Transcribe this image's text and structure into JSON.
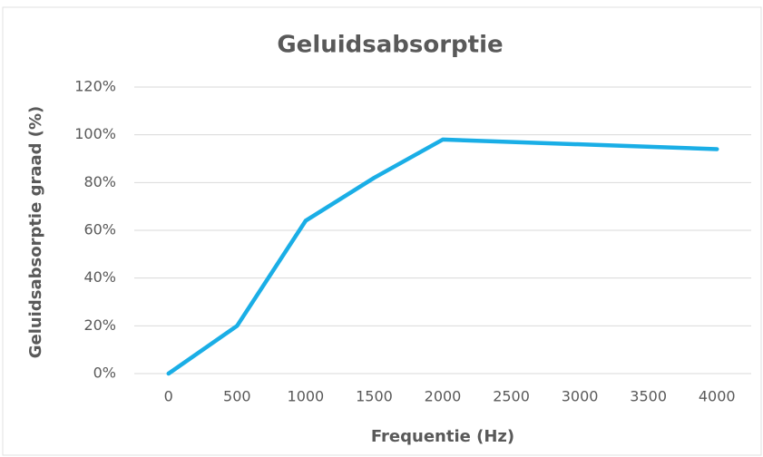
{
  "chart_data": {
    "type": "line",
    "title": "Geluidsabsorptie",
    "xlabel": "Frequentie  (Hz)",
    "ylabel": "Geluidsabsorptie  graad  (%)",
    "x": [
      0,
      500,
      1000,
      1500,
      2000,
      4000
    ],
    "series": [
      {
        "name": "Geluidsabsorptie",
        "color": "#1aaee6",
        "values": [
          0,
          20,
          64,
          82,
          98,
          94
        ]
      }
    ],
    "xlim": [
      -250,
      4250
    ],
    "xticks": [
      0,
      500,
      1000,
      1500,
      2000,
      2500,
      3000,
      3500,
      4000
    ],
    "ylim": [
      0,
      120
    ],
    "yticks": [
      {
        "value": 0,
        "label": "0%"
      },
      {
        "value": 20,
        "label": "20%"
      },
      {
        "value": 40,
        "label": "40%"
      },
      {
        "value": 60,
        "label": "60%"
      },
      {
        "value": 80,
        "label": "80%"
      },
      {
        "value": 100,
        "label": "100%"
      },
      {
        "value": 120,
        "label": "120%"
      }
    ],
    "grid": true
  }
}
